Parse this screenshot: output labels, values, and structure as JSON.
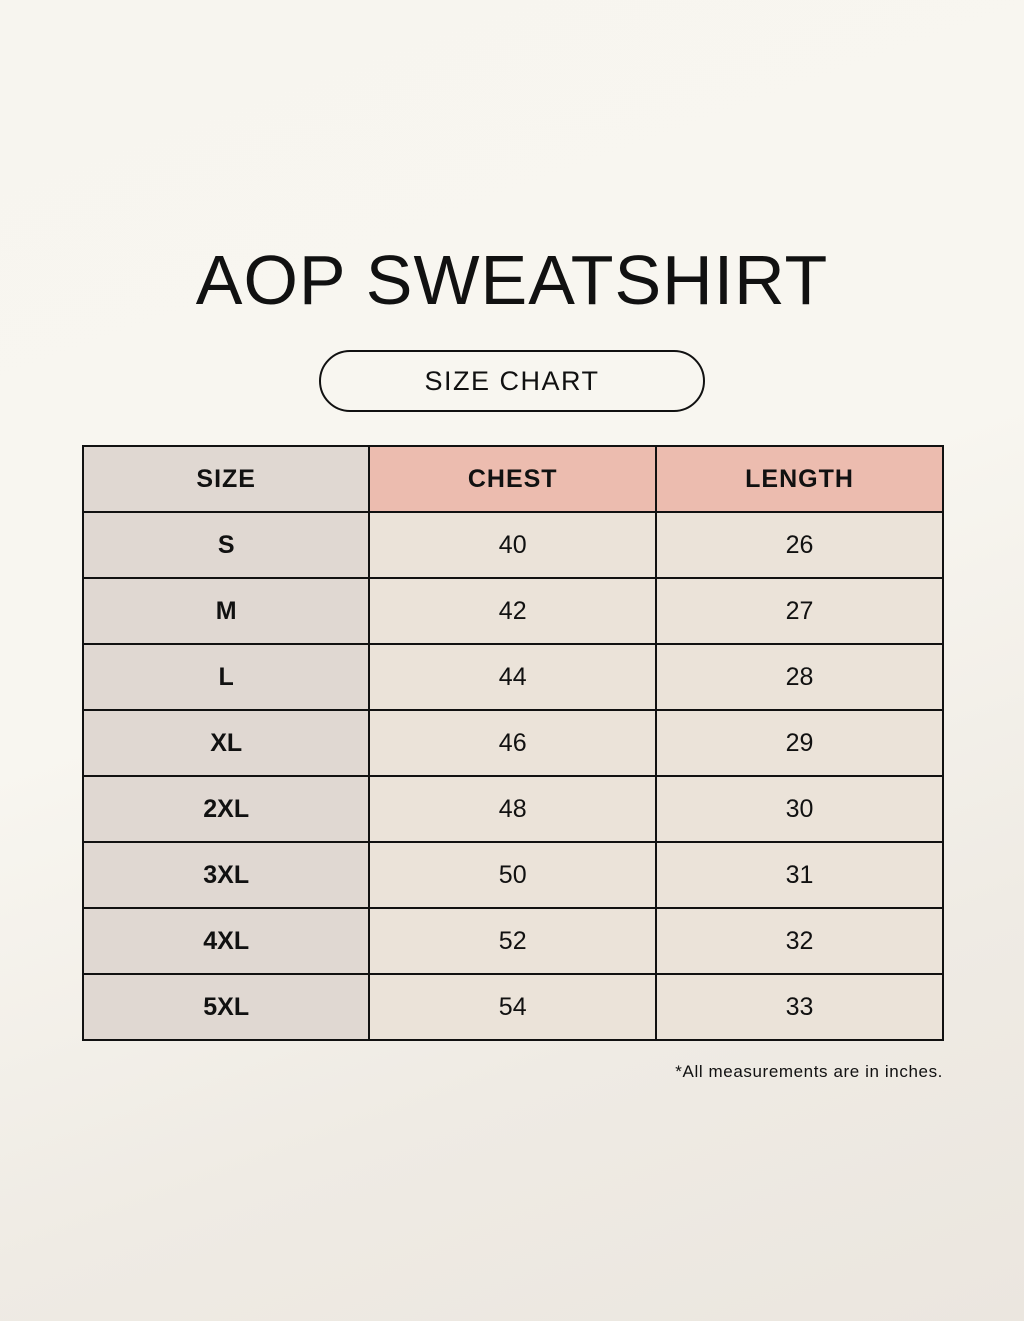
{
  "title": "AOP SWEATSHIRT",
  "subtitle": "SIZE CHART",
  "table": {
    "headers": [
      "SIZE",
      "CHEST",
      "LENGTH"
    ],
    "rows": [
      [
        "S",
        "40",
        "26"
      ],
      [
        "M",
        "42",
        "27"
      ],
      [
        "L",
        "44",
        "28"
      ],
      [
        "XL",
        "46",
        "29"
      ],
      [
        "2XL",
        "48",
        "30"
      ],
      [
        "3XL",
        "50",
        "31"
      ],
      [
        "4XL",
        "52",
        "32"
      ],
      [
        "5XL",
        "54",
        "33"
      ]
    ]
  },
  "footnote": "*All measurements are in inches.",
  "colors": {
    "header_accent": "#ecbcaf",
    "size_column": "#e0d8d2",
    "value_cells": "#ebe3d9"
  }
}
